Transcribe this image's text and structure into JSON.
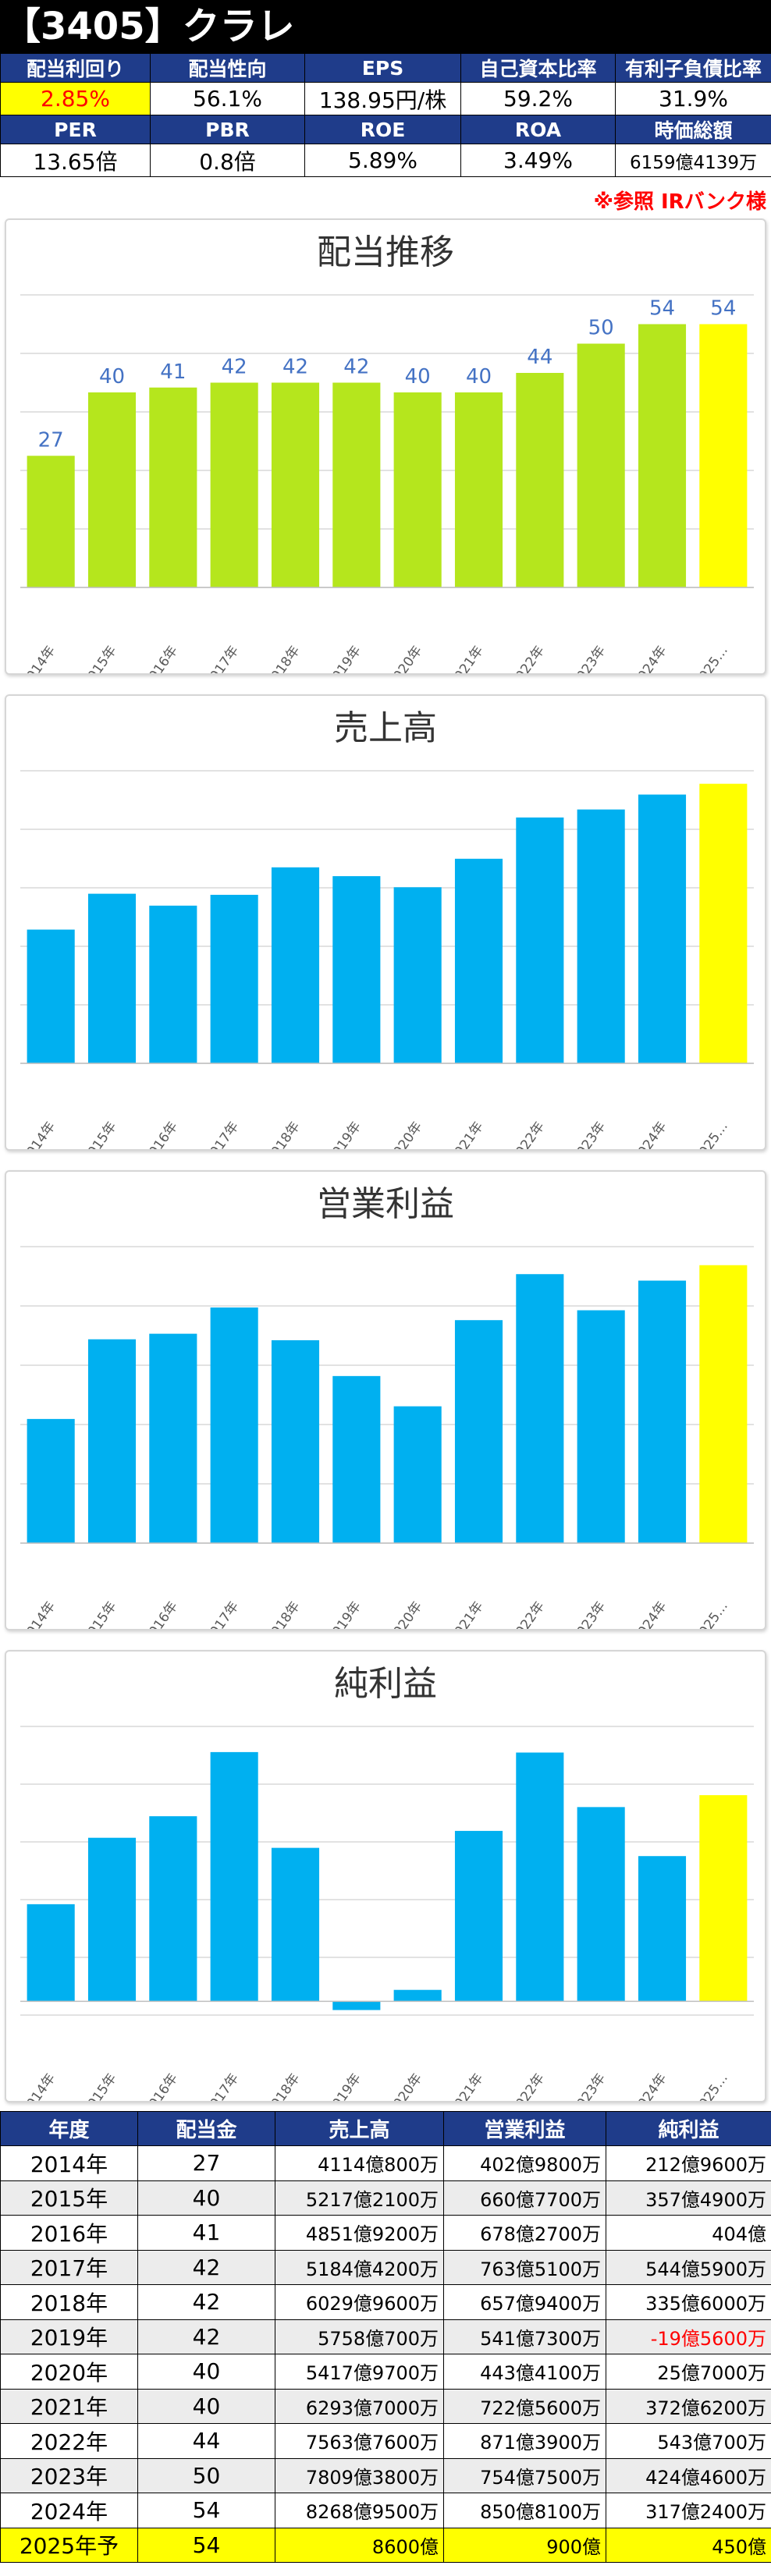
{
  "title": "【3405】クラレ",
  "metrics": {
    "row1_labels": [
      "配当利回り",
      "配当性向",
      "EPS",
      "自己資本比率",
      "有利子負債比率"
    ],
    "row1_values": [
      "2.85%",
      "56.1%",
      "138.95円/株",
      "59.2%",
      "31.9%"
    ],
    "row2_labels": [
      "PER",
      "PBR",
      "ROE",
      "ROA",
      "時価総額"
    ],
    "row2_values": [
      "13.65倍",
      "0.8倍",
      "5.89%",
      "3.49%",
      "6159億4139万"
    ]
  },
  "note": "※参照 IRバンク様",
  "colors": {
    "dividend_bar": "#b5e61d",
    "financial_bar": "#00b0f0",
    "forecast_bar": "#ffff00",
    "value_label": "#4472c4",
    "header_bg": "#1f3c8a",
    "negative_text": "#ff0000"
  },
  "chart_data": [
    {
      "type": "bar",
      "title": "配当推移",
      "categories": [
        "2014年",
        "2015年",
        "2016年",
        "2017年",
        "2018年",
        "2019年",
        "2020年",
        "2021年",
        "2022年",
        "2023年",
        "2024年",
        "2025…"
      ],
      "values": [
        27,
        40,
        41,
        42,
        42,
        42,
        40,
        40,
        44,
        50,
        54,
        54
      ],
      "data_labels": true,
      "ylim": [
        0,
        60
      ],
      "grid": true,
      "highlight_last": true
    },
    {
      "type": "bar",
      "title": "売上高",
      "categories": [
        "2014年",
        "2015年",
        "2016年",
        "2017年",
        "2018年",
        "2019年",
        "2020年",
        "2021年",
        "2022年",
        "2023年",
        "2024年",
        "2025…"
      ],
      "values": [
        4114,
        5217,
        4851,
        5184,
        6029,
        5758,
        5417,
        6293,
        7563,
        7809,
        8268,
        8600
      ],
      "unit": "億",
      "data_labels": false,
      "ylim": [
        0,
        9000
      ],
      "grid": true,
      "highlight_last": true
    },
    {
      "type": "bar",
      "title": "営業利益",
      "categories": [
        "2014年",
        "2015年",
        "2016年",
        "2017年",
        "2018年",
        "2019年",
        "2020年",
        "2021年",
        "2022年",
        "2023年",
        "2024年",
        "2025…"
      ],
      "values": [
        402,
        660,
        678,
        763,
        657,
        541,
        443,
        722,
        871,
        754,
        850,
        900
      ],
      "unit": "億",
      "data_labels": false,
      "ylim": [
        0,
        960
      ],
      "grid": true,
      "highlight_last": true
    },
    {
      "type": "bar",
      "title": "純利益",
      "categories": [
        "2014年",
        "2015年",
        "2016年",
        "2017年",
        "2018年",
        "2019年",
        "2020年",
        "2021年",
        "2022年",
        "2023年",
        "2024年",
        "2025…"
      ],
      "values": [
        212,
        357,
        404,
        544,
        335,
        -19,
        25,
        372,
        543,
        424,
        317,
        450
      ],
      "unit": "億",
      "data_labels": false,
      "ylim": [
        -30,
        600
      ],
      "grid": true,
      "highlight_last": true
    }
  ],
  "table": {
    "headers": [
      "年度",
      "配当金",
      "売上高",
      "営業利益",
      "純利益"
    ],
    "rows": [
      [
        "2014年",
        "27",
        "4114億800万",
        "402億9800万",
        "212億9600万"
      ],
      [
        "2015年",
        "40",
        "5217億2100万",
        "660億7700万",
        "357億4900万"
      ],
      [
        "2016年",
        "41",
        "4851億9200万",
        "678億2700万",
        "404億"
      ],
      [
        "2017年",
        "42",
        "5184億4200万",
        "763億5100万",
        "544億5900万"
      ],
      [
        "2018年",
        "42",
        "6029億9600万",
        "657億9400万",
        "335億6000万"
      ],
      [
        "2019年",
        "42",
        "5758億700万",
        "541億7300万",
        "-19億5600万"
      ],
      [
        "2020年",
        "40",
        "5417億9700万",
        "443億4100万",
        "25億7000万"
      ],
      [
        "2021年",
        "40",
        "6293億7000万",
        "722億5600万",
        "372億6200万"
      ],
      [
        "2022年",
        "44",
        "7563億7600万",
        "871億3900万",
        "543億700万"
      ],
      [
        "2023年",
        "50",
        "7809億3800万",
        "754億7500万",
        "424億4600万"
      ],
      [
        "2024年",
        "54",
        "8268億9500万",
        "850億8100万",
        "317億2400万"
      ],
      [
        "2025年予",
        "54",
        "8600億",
        "900億",
        "450億"
      ]
    ]
  }
}
